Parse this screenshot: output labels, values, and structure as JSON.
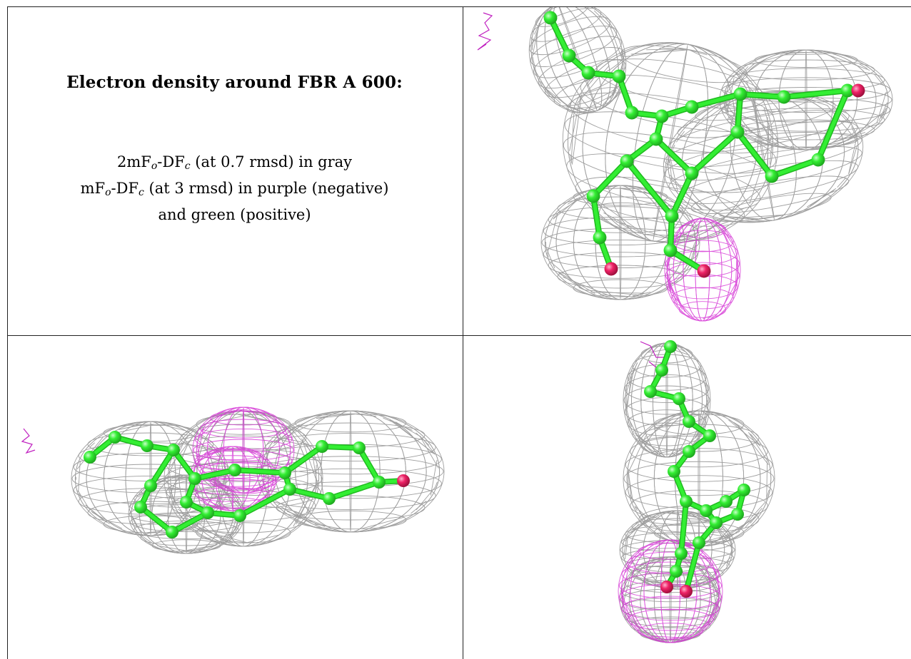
{
  "header": {
    "title": "Electron density around FBR A 600:"
  },
  "legend": {
    "line1": {
      "a": "2mF",
      "b": "o",
      "c": "-DF",
      "d": "c",
      "e": " (at 0.7 rmsd) in gray"
    },
    "line2": {
      "a": "mF",
      "b": "o",
      "c": "-DF",
      "d": "c",
      "e": " (at 3 rmsd) in purple (negative)"
    },
    "line3": "and green (positive)"
  },
  "colors": {
    "mesh_gray": "#8f8f8f",
    "mesh_purple": "#d63ad6",
    "carbon_green": "#33ee33",
    "oxygen_red": "#ee2266",
    "grid_line": "#222222"
  },
  "views": [
    {
      "name": "top-right-view"
    },
    {
      "name": "bottom-left-view"
    },
    {
      "name": "bottom-right-view"
    }
  ]
}
